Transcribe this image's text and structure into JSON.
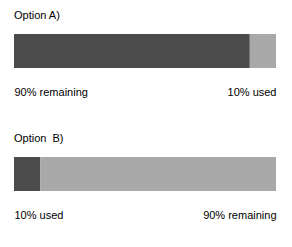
{
  "chart_data": [
    {
      "type": "bar",
      "title": "Option A)",
      "orientation": "horizontal",
      "stacked": true,
      "values": [
        90,
        10
      ],
      "colors": [
        "#4b4b4b",
        "#a9a9a9"
      ],
      "value_labels": [
        "90% remaining",
        "10% used"
      ],
      "data_labels": true,
      "xlim": [
        0,
        100
      ],
      "tick_labels": false
    },
    {
      "type": "bar",
      "title": "Option  B)",
      "orientation": "horizontal",
      "stacked": true,
      "values": [
        10,
        90
      ],
      "colors": [
        "#4b4b4b",
        "#a9a9a9"
      ],
      "value_labels": [
        "10% used",
        "90% remaining"
      ],
      "data_labels": true,
      "xlim": [
        0,
        100
      ],
      "tick_labels": false
    }
  ]
}
